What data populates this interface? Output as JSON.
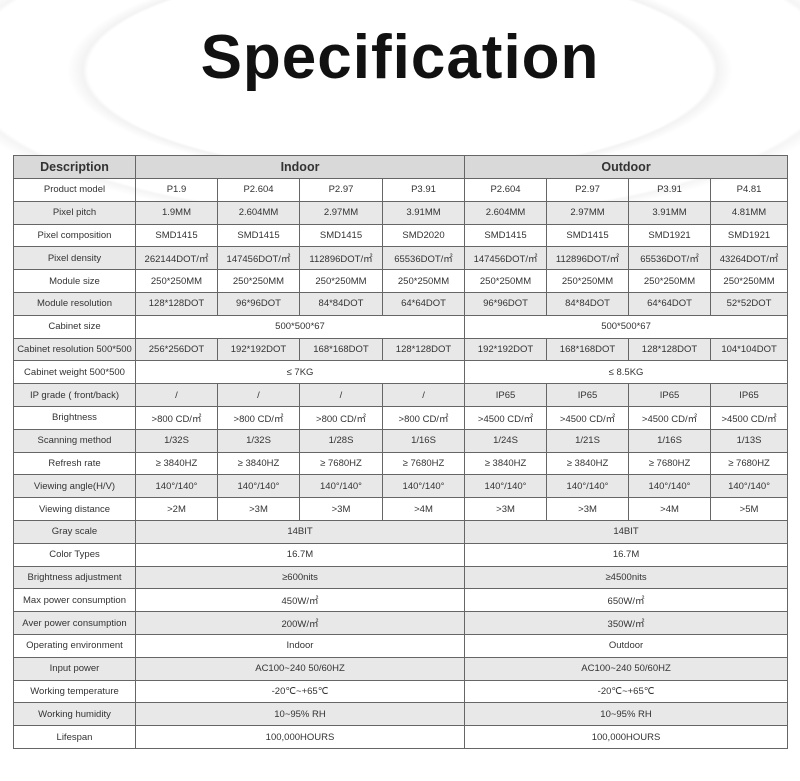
{
  "title": "Specification",
  "header": {
    "description": "Description",
    "indoor": "Indoor",
    "outdoor": "Outdoor"
  },
  "rows": [
    {
      "label": "Product model",
      "cells": [
        "P1.9",
        "P2.604",
        "P2.97",
        "P3.91",
        "P2.604",
        "P2.97",
        "P3.91",
        "P4.81"
      ]
    },
    {
      "label": "Pixel pitch",
      "cells": [
        "1.9MM",
        "2.604MM",
        "2.97MM",
        "3.91MM",
        "2.604MM",
        "2.97MM",
        "3.91MM",
        "4.81MM"
      ]
    },
    {
      "label": "Pixel composition",
      "cells": [
        "SMD1415",
        "SMD1415",
        "SMD1415",
        "SMD2020",
        "SMD1415",
        "SMD1415",
        "SMD1921",
        "SMD1921"
      ]
    },
    {
      "label": "Pixel density",
      "cells": [
        "262144DOT/㎡",
        "147456DOT/㎡",
        "112896DOT/㎡",
        "65536DOT/㎡",
        "147456DOT/㎡",
        "112896DOT/㎡",
        "65536DOT/㎡",
        "43264DOT/㎡"
      ]
    },
    {
      "label": "Module size",
      "cells": [
        "250*250MM",
        "250*250MM",
        "250*250MM",
        "250*250MM",
        "250*250MM",
        "250*250MM",
        "250*250MM",
        "250*250MM"
      ]
    },
    {
      "label": "Module resolution",
      "cells": [
        "128*128DOT",
        "96*96DOT",
        "84*84DOT",
        "64*64DOT",
        "96*96DOT",
        "84*84DOT",
        "64*64DOT",
        "52*52DOT"
      ]
    },
    {
      "label": "Cabinet size",
      "indoor": "500*500*67",
      "outdoor": "500*500*67"
    },
    {
      "label": "Cabinet resolution 500*500",
      "cells": [
        "256*256DOT",
        "192*192DOT",
        "168*168DOT",
        "128*128DOT",
        "192*192DOT",
        "168*168DOT",
        "128*128DOT",
        "104*104DOT"
      ]
    },
    {
      "label": "Cabinet weight 500*500",
      "indoor": "≤ 7KG",
      "outdoor": "≤ 8.5KG"
    },
    {
      "label": "IP grade ( front/back)",
      "cells": [
        "/",
        "/",
        "/",
        "/",
        "IP65",
        "IP65",
        "IP65",
        "IP65"
      ]
    },
    {
      "label": "Brightness",
      "cells": [
        ">800 CD/㎡",
        ">800 CD/㎡",
        ">800 CD/㎡",
        ">800 CD/㎡",
        ">4500 CD/㎡",
        ">4500 CD/㎡",
        ">4500 CD/㎡",
        ">4500 CD/㎡"
      ]
    },
    {
      "label": "Scanning method",
      "cells": [
        "1/32S",
        "1/32S",
        "1/28S",
        "1/16S",
        "1/24S",
        "1/21S",
        "1/16S",
        "1/13S"
      ]
    },
    {
      "label": "Refresh rate",
      "cells": [
        "≥ 3840HZ",
        "≥ 3840HZ",
        "≥ 7680HZ",
        "≥ 7680HZ",
        "≥ 3840HZ",
        "≥ 3840HZ",
        "≥ 7680HZ",
        "≥ 7680HZ"
      ]
    },
    {
      "label": "Viewing angle(H/V)",
      "cells": [
        "140°/140°",
        "140°/140°",
        "140°/140°",
        "140°/140°",
        "140°/140°",
        "140°/140°",
        "140°/140°",
        "140°/140°"
      ]
    },
    {
      "label": "Viewing distance",
      "cells": [
        ">2M",
        ">3M",
        ">3M",
        ">4M",
        ">3M",
        ">3M",
        ">4M",
        ">5M"
      ]
    },
    {
      "label": "Gray scale",
      "indoor": "14BIT",
      "outdoor": "14BIT"
    },
    {
      "label": "Color Types",
      "indoor": "16.7M",
      "outdoor": "16.7M"
    },
    {
      "label": "Brightness adjustment",
      "indoor": "≥600nits",
      "outdoor": "≥4500nits"
    },
    {
      "label": "Max power consumption",
      "indoor": "450W/㎡",
      "outdoor": "650W/㎡"
    },
    {
      "label": "Aver power consumption",
      "indoor": "200W/㎡",
      "outdoor": "350W/㎡"
    },
    {
      "label": "Operating environment",
      "indoor": "Indoor",
      "outdoor": "Outdoor"
    },
    {
      "label": "Input power",
      "indoor": "AC100~240 50/60HZ",
      "outdoor": "AC100~240 50/60HZ"
    },
    {
      "label": "Working temperature",
      "indoor": "-20℃~+65℃",
      "outdoor": "-20℃~+65℃"
    },
    {
      "label": "Working humidity",
      "indoor": "10~95% RH",
      "outdoor": "10~95% RH"
    },
    {
      "label": "Lifespan",
      "indoor": "100,000HOURS",
      "outdoor": "100,000HOURS"
    }
  ]
}
